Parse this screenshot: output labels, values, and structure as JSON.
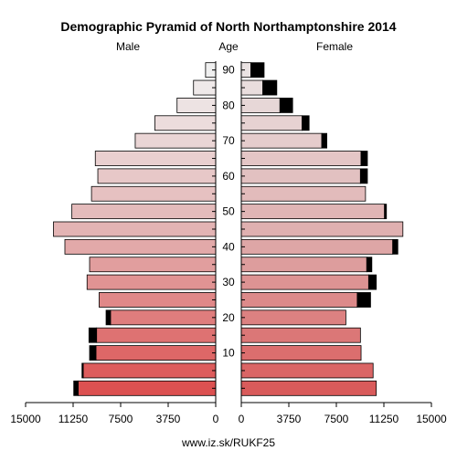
{
  "chart_data": {
    "type": "bar",
    "title": "Demographic Pyramid of North Northamptonshire 2014",
    "left_label": "Male",
    "center_label": "Age",
    "right_label": "Female",
    "source": "www.iz.sk/RUKF25",
    "age_groups": [
      "0-4",
      "5-9",
      "10-14",
      "15-19",
      "20-24",
      "25-29",
      "30-34",
      "35-39",
      "40-44",
      "45-49",
      "50-54",
      "55-59",
      "60-64",
      "65-69",
      "70-74",
      "75-79",
      "80-84",
      "85-89",
      "90+"
    ],
    "age_ticks": [
      "10",
      "20",
      "30",
      "40",
      "50",
      "60",
      "70",
      "80",
      "90"
    ],
    "x_ticks": [
      "15000",
      "11250",
      "7500",
      "3750",
      "0",
      "3750",
      "7500",
      "11250",
      "15000"
    ],
    "xlim": [
      0,
      15000
    ],
    "series": [
      {
        "name": "Male",
        "native": [
          10850,
          10450,
          9450,
          9400,
          8300,
          9200,
          10150,
          9950,
          11900,
          12800,
          11350,
          9800,
          9300,
          9500,
          6350,
          4800,
          3050,
          1750,
          800
        ],
        "foreign": [
          350,
          100,
          500,
          600,
          350,
          0,
          0,
          0,
          0,
          0,
          0,
          0,
          0,
          0,
          0,
          0,
          0,
          0,
          0
        ]
      },
      {
        "name": "Female",
        "native": [
          10650,
          10400,
          9450,
          9400,
          8250,
          9150,
          10050,
          9900,
          11950,
          12750,
          11300,
          9800,
          9400,
          9450,
          6350,
          4800,
          3050,
          1700,
          750
        ],
        "foreign": [
          0,
          0,
          0,
          0,
          0,
          1050,
          600,
          400,
          400,
          0,
          150,
          0,
          550,
          500,
          400,
          550,
          1000,
          1100,
          1050
        ]
      }
    ],
    "colors": {
      "bar_light": "#f0f0f0",
      "bar_mid": "#e3b4b4",
      "bar_dark": "#dc5151",
      "foreign": "#000000",
      "stroke": "#000000"
    },
    "grid": false
  }
}
